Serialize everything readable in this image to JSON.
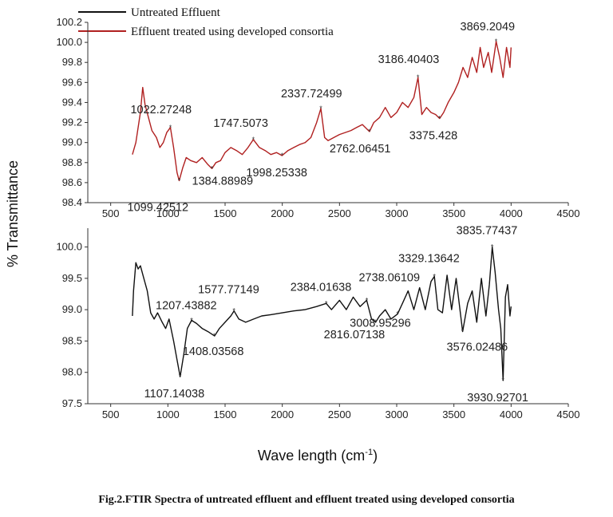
{
  "caption": "Fig.2.FTIR Spectra of untreated effluent and effluent treated using developed consortia",
  "chart_data": [
    {
      "type": "line",
      "xlabel": "Wave length (cm⁻¹)",
      "ylabel": "% Transmittance",
      "xlim": [
        300,
        4500
      ],
      "xticks": [
        500,
        1000,
        1500,
        2000,
        2500,
        3000,
        3500,
        4000,
        4500
      ],
      "ylim": [
        98.4,
        100.2
      ],
      "yticks": [
        "98.4",
        "98.6",
        "98.8",
        "99.0",
        "99.2",
        "99.4",
        "99.6",
        "99.8",
        "100.0",
        "100.2"
      ],
      "legend": "top-left",
      "series": [
        {
          "name": "Effluent treated using developed consortia",
          "color": "#b02020",
          "x": [
            690,
            720,
            760,
            780,
            800,
            830,
            860,
            900,
            930,
            960,
            990,
            1022,
            1050,
            1080,
            1099,
            1130,
            1160,
            1200,
            1250,
            1300,
            1350,
            1385,
            1420,
            1460,
            1500,
            1550,
            1600,
            1650,
            1700,
            1747,
            1800,
            1850,
            1900,
            1950,
            1998,
            2050,
            2100,
            2150,
            2200,
            2250,
            2300,
            2337,
            2370,
            2400,
            2450,
            2500,
            2550,
            2600,
            2650,
            2700,
            2762,
            2800,
            2850,
            2900,
            2950,
            3000,
            3050,
            3100,
            3150,
            3186,
            3220,
            3260,
            3300,
            3340,
            3375,
            3410,
            3450,
            3500,
            3540,
            3580,
            3620,
            3660,
            3700,
            3730,
            3760,
            3800,
            3830,
            3869,
            3900,
            3930,
            3960,
            3990,
            4000
          ],
          "y": [
            98.88,
            99.0,
            99.3,
            99.55,
            99.38,
            99.25,
            99.12,
            99.05,
            98.95,
            99.0,
            99.1,
            99.15,
            98.95,
            98.7,
            98.62,
            98.75,
            98.85,
            98.82,
            98.8,
            98.85,
            98.78,
            98.74,
            98.8,
            98.82,
            98.9,
            98.95,
            98.92,
            98.88,
            98.95,
            99.03,
            98.95,
            98.92,
            98.88,
            98.9,
            98.87,
            98.92,
            98.95,
            98.98,
            99.0,
            99.05,
            99.2,
            99.34,
            99.05,
            99.02,
            99.05,
            99.08,
            99.1,
            99.12,
            99.15,
            99.18,
            99.11,
            99.2,
            99.25,
            99.35,
            99.25,
            99.3,
            99.4,
            99.35,
            99.45,
            99.65,
            99.28,
            99.35,
            99.3,
            99.28,
            99.24,
            99.3,
            99.4,
            99.5,
            99.6,
            99.75,
            99.65,
            99.85,
            99.7,
            99.95,
            99.75,
            99.9,
            99.7,
            100.01,
            99.85,
            99.65,
            99.95,
            99.75,
            99.95
          ],
          "peaks": [
            {
              "x": 1022,
              "y": 99.15,
              "label": "1022.27248"
            },
            {
              "x": 1099,
              "y": 98.62,
              "label": "1099.42512"
            },
            {
              "x": 1385,
              "y": 98.74,
              "label": "1384.88989"
            },
            {
              "x": 1747,
              "y": 99.03,
              "label": "1747.5073"
            },
            {
              "x": 1998,
              "y": 98.87,
              "label": "1998.25338"
            },
            {
              "x": 2337,
              "y": 99.34,
              "label": "2337.72499"
            },
            {
              "x": 2762,
              "y": 99.11,
              "label": "2762.06451"
            },
            {
              "x": 3186,
              "y": 99.65,
              "label": "3186.40403"
            },
            {
              "x": 3375,
              "y": 99.24,
              "label": "3375.428"
            },
            {
              "x": 3869,
              "y": 100.01,
              "label": "3869.2049"
            }
          ]
        }
      ]
    },
    {
      "type": "line",
      "xlim": [
        300,
        4500
      ],
      "xticks": [
        500,
        1000,
        1500,
        2000,
        2500,
        3000,
        3500,
        4000,
        4500
      ],
      "ylim": [
        97.5,
        100.3
      ],
      "yticks": [
        "97.5",
        "98.0",
        "98.5",
        "99.0",
        "99.5",
        "100.0"
      ],
      "legend": "top-left",
      "series": [
        {
          "name": "Untreated Effluent",
          "color": "#111111",
          "x": [
            690,
            700,
            720,
            740,
            760,
            790,
            820,
            850,
            880,
            910,
            950,
            980,
            1010,
            1050,
            1080,
            1107,
            1140,
            1170,
            1207,
            1250,
            1300,
            1350,
            1408,
            1450,
            1500,
            1550,
            1578,
            1620,
            1680,
            1750,
            1820,
            1900,
            2000,
            2100,
            2200,
            2300,
            2384,
            2430,
            2500,
            2560,
            2620,
            2680,
            2738,
            2780,
            2816,
            2850,
            2900,
            2950,
            3008,
            3050,
            3100,
            3150,
            3200,
            3250,
            3300,
            3329,
            3360,
            3400,
            3440,
            3480,
            3520,
            3576,
            3620,
            3660,
            3700,
            3740,
            3780,
            3810,
            3835,
            3860,
            3890,
            3910,
            3930,
            3950,
            3970,
            3990,
            4000
          ],
          "y": [
            98.9,
            99.3,
            99.75,
            99.65,
            99.7,
            99.5,
            99.3,
            98.95,
            98.85,
            98.95,
            98.8,
            98.7,
            98.85,
            98.5,
            98.2,
            97.93,
            98.3,
            98.7,
            98.83,
            98.78,
            98.7,
            98.65,
            98.58,
            98.7,
            98.8,
            98.9,
            98.98,
            98.85,
            98.8,
            98.85,
            98.9,
            98.92,
            98.95,
            98.98,
            99.0,
            99.05,
            99.1,
            99.0,
            99.15,
            99.0,
            99.2,
            99.05,
            99.15,
            98.85,
            98.8,
            98.9,
            99.0,
            98.85,
            98.93,
            99.1,
            99.3,
            99.0,
            99.35,
            99.0,
            99.45,
            99.53,
            99.0,
            98.95,
            99.55,
            99.0,
            99.5,
            98.65,
            99.1,
            99.3,
            98.8,
            99.5,
            98.9,
            99.4,
            100.0,
            99.6,
            99.0,
            98.7,
            97.87,
            99.2,
            99.4,
            98.9,
            99.05
          ],
          "peaks": [
            {
              "x": 1107,
              "y": 97.93,
              "label": "1107.14038"
            },
            {
              "x": 1207,
              "y": 98.83,
              "label": "1207.43882"
            },
            {
              "x": 1408,
              "y": 98.58,
              "label": "1408.03568"
            },
            {
              "x": 1578,
              "y": 98.98,
              "label": "1577.77149"
            },
            {
              "x": 2384,
              "y": 99.1,
              "label": "2384.01638"
            },
            {
              "x": 2738,
              "y": 99.15,
              "label": "2738.06109"
            },
            {
              "x": 2816,
              "y": 98.8,
              "label": "2816.07138"
            },
            {
              "x": 3008,
              "y": 98.93,
              "label": "3008.95296"
            },
            {
              "x": 3329,
              "y": 99.53,
              "label": "3329.13642"
            },
            {
              "x": 3576,
              "y": 98.65,
              "label": "3576.02486"
            },
            {
              "x": 3835,
              "y": 100.0,
              "label": "3835.77437"
            },
            {
              "x": 3930,
              "y": 97.87,
              "label": "3930.92701"
            }
          ]
        }
      ]
    }
  ]
}
